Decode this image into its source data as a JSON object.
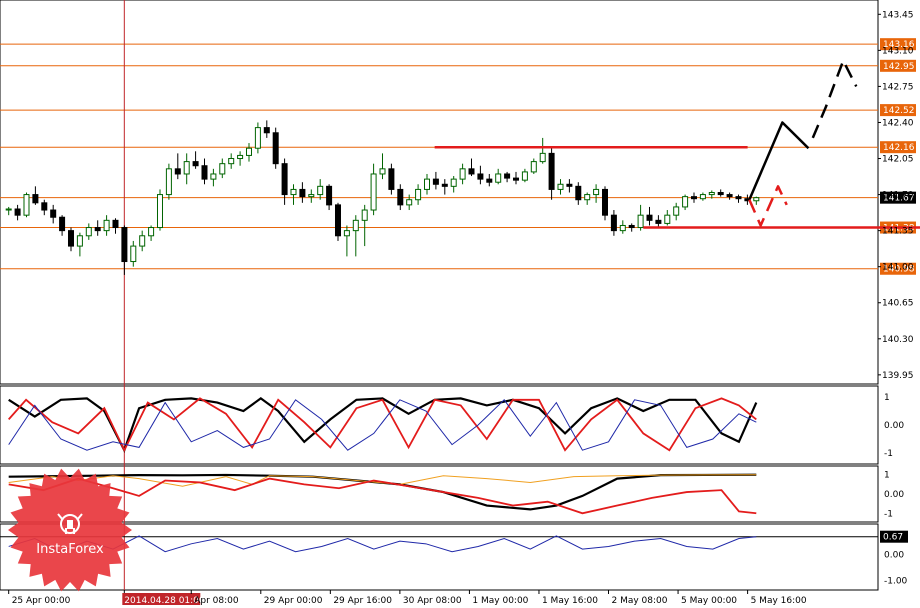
{
  "colors": {
    "bull": "#006400",
    "bear": "#000000",
    "level_line": "#e8650a",
    "level_tag_bg": "#e8650a",
    "selected_tag_bg": "#000000",
    "red_line": "#e31c1c",
    "forecast_black": "#000000",
    "forecast_red": "#e31c1c",
    "osc_black": "#000000",
    "osc_red": "#e31c1c",
    "osc_blue": "#1f28a8",
    "osc_orange": "#f0a020",
    "brand_red": "#e8363c"
  },
  "brand": {
    "name": "InstaForex",
    "icon": "insta-bull-logo-icon"
  },
  "chart_data": [
    {
      "type": "candlestick",
      "symbol_panel": "price",
      "yaxis_ticks": [
        143.45,
        143.1,
        142.75,
        142.4,
        142.05,
        141.7,
        141.35,
        141.0,
        140.65,
        140.3,
        139.95
      ],
      "ylim": [
        139.9,
        143.55
      ],
      "levels": [
        {
          "value": 143.16,
          "label": "143.16",
          "style": "tag"
        },
        {
          "value": 142.95,
          "label": "142.95",
          "style": "tag"
        },
        {
          "value": 142.52,
          "label": "142.52",
          "style": "tag"
        },
        {
          "value": 142.16,
          "label": "142.16",
          "style": "tag"
        },
        {
          "value": 141.67,
          "label": "141.67",
          "style": "selected"
        },
        {
          "value": 141.38,
          "label": "141.38",
          "style": "tag"
        },
        {
          "value": 140.98,
          "label": "140.98",
          "style": "tag"
        }
      ],
      "horizontal_segments": [
        {
          "y": 142.16,
          "x_from": 49,
          "x_to": 85
        },
        {
          "y": 141.38,
          "x_from": 73,
          "x_to": 107
        }
      ],
      "vertical_marker": {
        "x": 13.3,
        "label": "2014.04.28 01:00"
      },
      "x_ticks": [
        {
          "label": "25 Apr 00:00",
          "x": 0.0
        },
        {
          "label": "2014.04.28 01:00",
          "x": 13.3,
          "highlight": true
        },
        {
          "label": "Apr 08:00",
          "x": 21.0
        },
        {
          "label": "29 Apr 00:00",
          "x": 29.0
        },
        {
          "label": "29 Apr 16:00",
          "x": 37.0
        },
        {
          "label": "30 Apr 08:00",
          "x": 45.0
        },
        {
          "label": "1 May 00:00",
          "x": 53.0
        },
        {
          "label": "1 May 16:00",
          "x": 61.0
        },
        {
          "label": "2 May 08:00",
          "x": 69.0
        },
        {
          "label": "5 May 00:00",
          "x": 77.0
        },
        {
          "label": "5 May 16:00",
          "x": 85.0
        }
      ],
      "candles": [
        [
          141.55,
          141.58,
          141.5,
          141.56
        ],
        [
          141.56,
          141.6,
          141.45,
          141.5
        ],
        [
          141.5,
          141.72,
          141.48,
          141.7
        ],
        [
          141.7,
          141.78,
          141.6,
          141.62
        ],
        [
          141.62,
          141.65,
          141.5,
          141.55
        ],
        [
          141.55,
          141.6,
          141.42,
          141.48
        ],
        [
          141.48,
          141.5,
          141.3,
          141.35
        ],
        [
          141.35,
          141.38,
          141.15,
          141.2
        ],
        [
          141.2,
          141.33,
          141.1,
          141.3
        ],
        [
          141.3,
          141.42,
          141.26,
          141.38
        ],
        [
          141.38,
          141.45,
          141.3,
          141.35
        ],
        [
          141.35,
          141.5,
          141.3,
          141.45
        ],
        [
          141.45,
          141.47,
          141.32,
          141.38
        ],
        [
          141.38,
          141.4,
          140.92,
          141.05
        ],
        [
          141.05,
          141.25,
          141.0,
          141.2
        ],
        [
          141.2,
          141.35,
          141.15,
          141.3
        ],
        [
          141.3,
          141.4,
          141.25,
          141.38
        ],
        [
          141.38,
          141.75,
          141.35,
          141.7
        ],
        [
          141.7,
          142.0,
          141.65,
          141.95
        ],
        [
          141.95,
          142.1,
          141.85,
          141.9
        ],
        [
          141.9,
          142.1,
          141.8,
          142.02
        ],
        [
          142.02,
          142.12,
          141.95,
          141.98
        ],
        [
          141.98,
          142.05,
          141.8,
          141.85
        ],
        [
          141.85,
          141.95,
          141.78,
          141.9
        ],
        [
          141.9,
          142.05,
          141.86,
          142.0
        ],
        [
          142.0,
          142.1,
          141.95,
          142.05
        ],
        [
          142.05,
          142.12,
          141.98,
          142.08
        ],
        [
          142.08,
          142.2,
          142.02,
          142.15
        ],
        [
          142.15,
          142.4,
          142.1,
          142.35
        ],
        [
          142.35,
          142.42,
          142.25,
          142.3
        ],
        [
          142.3,
          142.35,
          141.95,
          142.0
        ],
        [
          142.0,
          142.05,
          141.6,
          141.7
        ],
        [
          141.7,
          141.8,
          141.6,
          141.75
        ],
        [
          141.75,
          141.82,
          141.62,
          141.68
        ],
        [
          141.68,
          141.75,
          141.62,
          141.7
        ],
        [
          141.7,
          141.85,
          141.65,
          141.78
        ],
        [
          141.78,
          141.8,
          141.55,
          141.6
        ],
        [
          141.6,
          141.62,
          141.25,
          141.3
        ],
        [
          141.3,
          141.4,
          141.1,
          141.35
        ],
        [
          141.35,
          141.5,
          141.1,
          141.45
        ],
        [
          141.45,
          141.6,
          141.2,
          141.55
        ],
        [
          141.55,
          142.0,
          141.5,
          141.9
        ],
        [
          141.9,
          142.1,
          141.85,
          141.95
        ],
        [
          141.95,
          142.0,
          141.7,
          141.75
        ],
        [
          141.75,
          141.8,
          141.55,
          141.6
        ],
        [
          141.6,
          141.7,
          141.55,
          141.65
        ],
        [
          141.65,
          141.8,
          141.6,
          141.75
        ],
        [
          141.75,
          141.9,
          141.7,
          141.85
        ],
        [
          141.85,
          141.92,
          141.75,
          141.8
        ],
        [
          141.8,
          141.85,
          141.7,
          141.78
        ],
        [
          141.78,
          141.88,
          141.72,
          141.85
        ],
        [
          141.85,
          142.0,
          141.8,
          141.95
        ],
        [
          141.95,
          142.05,
          141.88,
          141.9
        ],
        [
          141.9,
          141.98,
          141.8,
          141.85
        ],
        [
          141.85,
          141.9,
          141.78,
          141.82
        ],
        [
          141.82,
          141.95,
          141.8,
          141.9
        ],
        [
          141.9,
          141.92,
          141.82,
          141.86
        ],
        [
          141.86,
          141.92,
          141.8,
          141.84
        ],
        [
          141.84,
          141.95,
          141.82,
          141.92
        ],
        [
          141.92,
          142.05,
          141.9,
          142.02
        ],
        [
          142.02,
          142.25,
          142.0,
          142.1
        ],
        [
          142.1,
          142.15,
          141.65,
          141.75
        ],
        [
          141.75,
          141.85,
          141.7,
          141.8
        ],
        [
          141.8,
          141.85,
          141.72,
          141.78
        ],
        [
          141.78,
          141.82,
          141.6,
          141.65
        ],
        [
          141.65,
          141.72,
          141.6,
          141.7
        ],
        [
          141.7,
          141.8,
          141.62,
          141.75
        ],
        [
          141.75,
          141.78,
          141.45,
          141.5
        ],
        [
          141.5,
          141.55,
          141.3,
          141.35
        ],
        [
          141.35,
          141.45,
          141.32,
          141.4
        ],
        [
          141.4,
          141.42,
          141.34,
          141.38
        ],
        [
          141.38,
          141.6,
          141.35,
          141.5
        ],
        [
          141.5,
          141.58,
          141.4,
          141.45
        ],
        [
          141.45,
          141.5,
          141.38,
          141.42
        ],
        [
          141.42,
          141.55,
          141.4,
          141.5
        ],
        [
          141.5,
          141.62,
          141.45,
          141.58
        ],
        [
          141.58,
          141.7,
          141.55,
          141.68
        ],
        [
          141.68,
          141.72,
          141.62,
          141.66
        ],
        [
          141.66,
          141.72,
          141.64,
          141.7
        ],
        [
          141.7,
          141.74,
          141.66,
          141.72
        ],
        [
          141.72,
          141.75,
          141.68,
          141.7
        ],
        [
          141.7,
          141.72,
          141.65,
          141.68
        ],
        [
          141.68,
          141.7,
          141.62,
          141.66
        ],
        [
          141.66,
          141.7,
          141.6,
          141.64
        ],
        [
          141.64,
          141.68,
          141.6,
          141.67
        ]
      ],
      "forecast_paths": [
        {
          "color": "black",
          "style": "solid",
          "points": [
            [
              85.2,
              141.65
            ],
            [
              89,
              142.4
            ],
            [
              92,
              142.15
            ]
          ]
        },
        {
          "color": "black",
          "style": "dashed",
          "points": [
            [
              92.5,
              142.25
            ],
            [
              94,
              142.55
            ],
            [
              96,
              143.0
            ],
            [
              97.5,
              142.75
            ]
          ]
        },
        {
          "color": "red",
          "style": "dashed",
          "points": [
            [
              85.2,
              141.65
            ],
            [
              86.5,
              141.4
            ],
            [
              88.5,
              141.78
            ],
            [
              89.5,
              141.6
            ]
          ]
        }
      ]
    },
    {
      "type": "line",
      "symbol_panel": "oscillator_1",
      "yaxis_ticks": [
        1,
        0.0,
        -1
      ],
      "ylim": [
        -1.25,
        1.25
      ],
      "series": [
        {
          "color": "black",
          "x": [
            0,
            3,
            6,
            9,
            11,
            13.3,
            15,
            18,
            21,
            24,
            27,
            29,
            31,
            34,
            37,
            40,
            43,
            46,
            49,
            52,
            55,
            58,
            61,
            64,
            67,
            70,
            73,
            76,
            79,
            82,
            84,
            86
          ],
          "values": [
            0.9,
            0.3,
            0.9,
            0.95,
            0.5,
            -0.9,
            0.6,
            0.9,
            0.95,
            0.8,
            0.5,
            0.95,
            0.5,
            -0.6,
            0.2,
            0.9,
            0.95,
            0.4,
            0.9,
            0.95,
            0.7,
            0.9,
            0.6,
            -0.3,
            0.6,
            0.95,
            0.5,
            0.9,
            0.9,
            -0.3,
            -0.6,
            0.8
          ]
        },
        {
          "color": "red",
          "x": [
            0,
            2,
            5,
            8,
            11,
            13.3,
            16,
            19,
            22,
            25,
            28,
            31,
            34,
            37,
            40,
            43,
            46,
            49,
            52,
            55,
            58,
            61,
            64,
            67,
            70,
            73,
            76,
            79,
            82,
            84,
            86
          ],
          "values": [
            0.2,
            0.9,
            0.1,
            -0.3,
            0.6,
            -0.9,
            0.8,
            0.2,
            0.95,
            0.4,
            -0.8,
            0.9,
            0.1,
            -0.8,
            0.6,
            0.9,
            -0.8,
            0.9,
            0.7,
            -0.5,
            0.9,
            0.9,
            -0.9,
            0.2,
            0.9,
            -0.3,
            -0.9,
            0.6,
            0.95,
            0.7,
            0.2
          ]
        },
        {
          "color": "blue",
          "x": [
            0,
            3,
            6,
            9,
            12,
            15,
            18,
            21,
            24,
            27,
            30,
            33,
            36,
            39,
            42,
            45,
            48,
            51,
            54,
            57,
            60,
            63,
            66,
            69,
            72,
            75,
            78,
            81,
            84,
            86
          ],
          "values": [
            -0.7,
            0.7,
            -0.5,
            -0.9,
            -0.6,
            -0.8,
            0.8,
            -0.6,
            -0.2,
            -0.8,
            -0.5,
            0.9,
            0.2,
            -0.9,
            -0.3,
            0.9,
            0.5,
            -0.7,
            0.0,
            0.9,
            -0.4,
            0.8,
            -0.9,
            -0.6,
            0.9,
            0.7,
            -0.8,
            -0.5,
            0.4,
            0.1
          ]
        }
      ]
    },
    {
      "type": "line",
      "symbol_panel": "oscillator_2",
      "yaxis_ticks": [
        1,
        0.0,
        -1
      ],
      "ylim": [
        -1.35,
        1.35
      ],
      "series": [
        {
          "color": "black",
          "x": [
            0,
            5,
            10,
            15,
            20,
            25,
            30,
            35,
            40,
            45,
            50,
            55,
            60,
            63,
            66,
            70,
            75,
            80,
            86
          ],
          "values": [
            0.9,
            0.92,
            0.95,
            0.98,
            0.97,
            0.99,
            0.95,
            0.9,
            0.7,
            0.5,
            0.1,
            -0.6,
            -0.8,
            -0.6,
            -0.1,
            0.8,
            0.98,
            0.99,
            1.0
          ]
        },
        {
          "color": "orange",
          "x": [
            0,
            5,
            8,
            12,
            15,
            20,
            25,
            28,
            30,
            35,
            40,
            45,
            50,
            55,
            60,
            65,
            70,
            75,
            80,
            86
          ],
          "values": [
            0.6,
            0.9,
            0.7,
            0.95,
            0.8,
            0.4,
            0.9,
            0.5,
            0.95,
            0.9,
            0.7,
            0.5,
            0.95,
            0.8,
            0.6,
            0.9,
            0.95,
            0.98,
            0.99,
            1.0
          ]
        },
        {
          "color": "red",
          "x": [
            0,
            4,
            8,
            12,
            15,
            18,
            22,
            26,
            30,
            34,
            38,
            42,
            46,
            50,
            54,
            58,
            62,
            66,
            70,
            74,
            78,
            82,
            84,
            86
          ],
          "values": [
            0.5,
            0.2,
            0.8,
            0.3,
            -0.1,
            0.7,
            0.6,
            0.2,
            0.8,
            0.5,
            0.3,
            0.7,
            0.4,
            0.1,
            -0.2,
            -0.6,
            -0.4,
            -1.0,
            -0.6,
            -0.2,
            0.1,
            0.2,
            -0.9,
            -1.0
          ]
        }
      ]
    },
    {
      "type": "line",
      "symbol_panel": "oscillator_3",
      "yaxis_ticks": [
        0.67,
        0.0,
        -1.0
      ],
      "ylim": [
        -1.2,
        1.0
      ],
      "current_value_label": "0.67",
      "series": [
        {
          "color": "blue",
          "x": [
            0,
            3,
            6,
            9,
            12,
            15,
            18,
            21,
            24,
            27,
            30,
            33,
            36,
            39,
            42,
            45,
            48,
            51,
            54,
            57,
            60,
            63,
            66,
            69,
            72,
            75,
            78,
            81,
            84,
            86
          ],
          "values": [
            0.3,
            0.6,
            0.1,
            0.5,
            0.2,
            0.7,
            0.1,
            0.4,
            0.6,
            0.2,
            0.5,
            0.1,
            0.3,
            0.6,
            0.2,
            0.5,
            0.4,
            0.1,
            0.3,
            0.6,
            0.2,
            0.7,
            0.2,
            0.3,
            0.5,
            0.6,
            0.3,
            0.2,
            0.6,
            0.67
          ]
        }
      ]
    }
  ]
}
